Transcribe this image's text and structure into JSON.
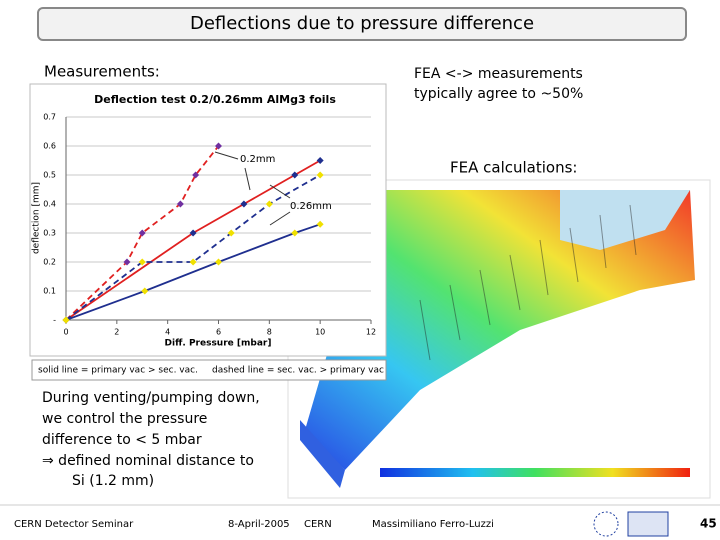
{
  "slide": {
    "title": "Deflections due to pressure difference",
    "measurements_heading": "Measurements:",
    "agreement_note": [
      "FEA <-> measurements",
      "typically agree to ~50%"
    ],
    "fea_heading": "FEA calculations:",
    "control_text": [
      "During venting/pumping down,",
      "we control the pressure",
      "difference to < 5 mbar",
      "⇒  defined nominal distance to",
      "Si (1.2 mm)"
    ],
    "legend_text": [
      "solid line = primary vac > sec. vac.",
      "dashed line = sec. vac. > primary vac"
    ]
  },
  "chart_data": {
    "type": "line",
    "title": "Deflection test 0.2/0.26mm AlMg3 foils",
    "x_label": "Diff. Pressure [mbar]",
    "y_label": "deflection [mm]",
    "xlim": [
      0,
      12
    ],
    "xticks": [
      0,
      2,
      4,
      6,
      8,
      10,
      12
    ],
    "ylim": [
      0,
      0.7
    ],
    "yticks": [
      {
        "value": 0,
        "label": "-"
      },
      0.1,
      0.2,
      0.3,
      0.4,
      0.5,
      0.6,
      0.7
    ],
    "grid": true,
    "annotations": [
      "0.2mm",
      "0.26mm"
    ],
    "series": [
      {
        "color": "#e02020",
        "linestyle": "dashed",
        "marker_color": "#7030a0",
        "x": [
          0,
          2.4,
          3,
          4.5,
          5.1,
          6
        ],
        "values": [
          0,
          0.2,
          0.3,
          0.4,
          0.5,
          0.6
        ]
      },
      {
        "color": "#e02020",
        "linestyle": "solid",
        "marker_color": "#1f2f8f",
        "x": [
          0,
          5,
          7,
          9,
          10
        ],
        "values": [
          0,
          0.3,
          0.4,
          0.5,
          0.55
        ]
      },
      {
        "color": "#1f2f8f",
        "linestyle": "dashed",
        "marker_color": "#f0e000",
        "x": [
          0,
          3,
          5,
          6.5,
          8,
          10
        ],
        "values": [
          0,
          0.2,
          0.2,
          0.3,
          0.4,
          0.5
        ]
      },
      {
        "color": "#1f2f8f",
        "linestyle": "solid",
        "marker_color": "#f0e000",
        "x": [
          0,
          3.1,
          6,
          9,
          10
        ],
        "values": [
          0,
          0.1,
          0.2,
          0.3,
          0.33
        ]
      }
    ]
  },
  "footer": {
    "event": "CERN Detector Seminar",
    "date": "8-April-2005",
    "place": "CERN",
    "author": "Massimiliano Ferro-Luzzi",
    "page": "45"
  }
}
